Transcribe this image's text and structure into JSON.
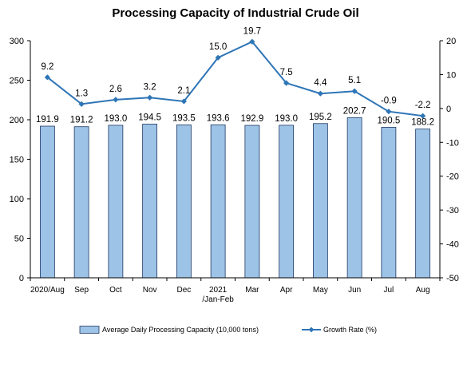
{
  "chart_data": {
    "type": "bar+line",
    "title": "Processing Capacity of Industrial Crude Oil",
    "categories": [
      "2020/Aug",
      "Sep",
      "Oct",
      "Nov",
      "Dec",
      [
        "2021",
        "/Jan-Feb"
      ],
      "Mar",
      "Apr",
      "May",
      "Jun",
      "Jul",
      "Aug"
    ],
    "series": [
      {
        "name": "Average Daily Processing Capacity (10,000 tons)",
        "type": "bar",
        "axis": "left",
        "color": "#9dc3e6",
        "values": [
          191.9,
          191.2,
          193.0,
          194.5,
          193.5,
          193.6,
          192.9,
          193.0,
          195.2,
          202.7,
          190.5,
          188.2
        ],
        "labels": [
          "191.9",
          "191.2",
          "193.0",
          "194.5",
          "193.5",
          "193.6",
          "192.9",
          "193.0",
          "195.2",
          "202.7",
          "190.5",
          "188.2"
        ]
      },
      {
        "name": "Growth Rate (%)",
        "type": "line",
        "axis": "right",
        "color": "#2e75b6",
        "values": [
          9.2,
          1.3,
          2.6,
          3.2,
          2.1,
          15.0,
          19.7,
          7.5,
          4.4,
          5.1,
          -0.9,
          -2.2
        ],
        "labels": [
          "9.2",
          "1.3",
          "2.6",
          "3.2",
          "2.1",
          "15.0",
          "19.7",
          "7.5",
          "4.4",
          "5.1",
          "-0.9",
          "-2.2"
        ]
      }
    ],
    "y_left": {
      "ylim": [
        0,
        300
      ],
      "ticks": [
        "0",
        "50",
        "100",
        "150",
        "200",
        "250",
        "300"
      ]
    },
    "y_right": {
      "ylim": [
        -50,
        20
      ],
      "ticks": [
        "-50",
        "-40",
        "-30",
        "-20",
        "-10",
        "0",
        "10",
        "20"
      ]
    },
    "grid": false,
    "legend_position": "bottom"
  }
}
